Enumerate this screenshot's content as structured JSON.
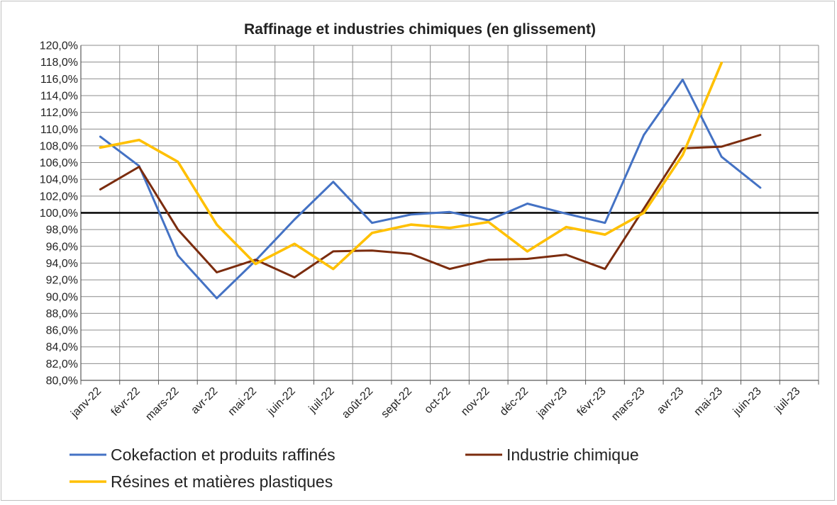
{
  "chart_data": {
    "type": "line",
    "title": "Raffinage et industries chimiques (en glissement)",
    "xlabel": "",
    "ylabel": "",
    "categories": [
      "janv-22",
      "févr-22",
      "mars-22",
      "avr-22",
      "mai-22",
      "juin-22",
      "juil-22",
      "août-22",
      "sept-22",
      "oct-22",
      "nov-22",
      "déc-22",
      "janv-23",
      "févr-23",
      "mars-23",
      "avr-23",
      "mai-23",
      "juin-23",
      "juil-23"
    ],
    "ylim": [
      80,
      120
    ],
    "ytick_step": 2,
    "ytick_labels": [
      "80,0%",
      "82,0%",
      "84,0%",
      "86,0%",
      "88,0%",
      "90,0%",
      "92,0%",
      "94,0%",
      "96,0%",
      "98,0%",
      "100,0%",
      "102,0%",
      "104,0%",
      "106,0%",
      "108,0%",
      "110,0%",
      "112,0%",
      "114,0%",
      "116,0%",
      "118,0%",
      "120,0%"
    ],
    "reference_line": 100,
    "grid": true,
    "legend_position": "bottom",
    "series": [
      {
        "name": "Cokefaction et produits raffinés",
        "color": "#4472c4",
        "values": [
          109.1,
          105.6,
          94.9,
          89.8,
          94.3,
          99.2,
          103.7,
          98.8,
          99.8,
          100.1,
          99.1,
          101.1,
          99.9,
          98.8,
          109.3,
          115.9,
          106.7,
          103.0,
          null
        ]
      },
      {
        "name": "Industrie chimique",
        "color": "#7b2c0e",
        "values": [
          102.8,
          105.5,
          98.0,
          92.9,
          94.4,
          92.3,
          95.4,
          95.5,
          95.1,
          93.3,
          94.4,
          94.5,
          95.0,
          93.3,
          100.5,
          107.7,
          107.9,
          109.3,
          null
        ]
      },
      {
        "name": "Résines et matières plastiques",
        "color": "#ffc000",
        "values": [
          107.8,
          108.7,
          106.1,
          98.6,
          93.9,
          96.3,
          93.3,
          97.6,
          98.6,
          98.2,
          98.9,
          95.4,
          98.3,
          97.4,
          100.0,
          106.9,
          117.9,
          null,
          null
        ]
      }
    ]
  }
}
